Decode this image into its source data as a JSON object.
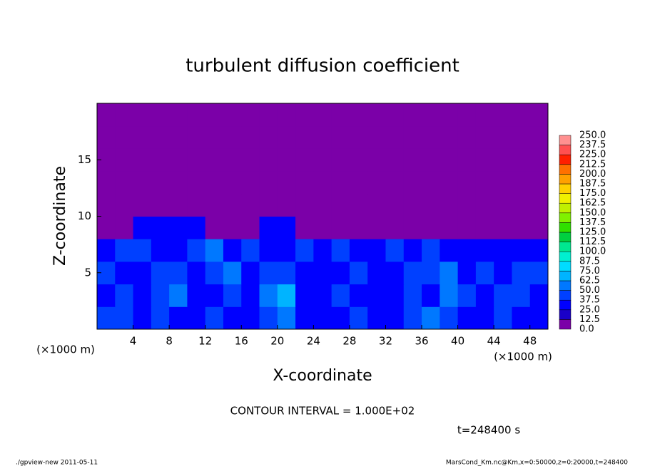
{
  "chart_data": {
    "type": "heatmap",
    "title": "turbulent diffusion coefficient",
    "xlabel": "X-coordinate",
    "ylabel": "Z-coordinate",
    "x_unit": "(×1000 m)",
    "y_unit": "(×1000 m)",
    "contour_note": "CONTOUR INTERVAL = 1.000E+02",
    "time_label": "t=248400 s",
    "footer_left": "./gpview-new  2011-05-11",
    "footer_right": "MarsCond_Km.nc@Km,x=0:50000,z=0:20000,t=248400",
    "xlim": [
      0,
      50
    ],
    "ylim": [
      0,
      20
    ],
    "xticks": [
      4,
      8,
      12,
      16,
      20,
      24,
      28,
      32,
      36,
      40,
      44,
      48
    ],
    "yticks": [
      5,
      10,
      15
    ],
    "x": [
      1,
      3,
      5,
      7,
      9,
      11,
      13,
      15,
      17,
      19,
      21,
      23,
      25,
      27,
      29,
      31,
      33,
      35,
      37,
      39,
      41,
      43,
      45,
      47,
      49
    ],
    "z": [
      1,
      3,
      5,
      7,
      9,
      11,
      13,
      15,
      17,
      19
    ],
    "values": [
      [
        40,
        45,
        35,
        40,
        30,
        35,
        40,
        30,
        35,
        40,
        55,
        35,
        30,
        35,
        40,
        30,
        35,
        45,
        50,
        40,
        35,
        35,
        40,
        35,
        30
      ],
      [
        35,
        40,
        30,
        45,
        50,
        35,
        30,
        40,
        30,
        55,
        70,
        35,
        30,
        40,
        35,
        35,
        30,
        40,
        35,
        50,
        40,
        35,
        45,
        40,
        35
      ],
      [
        40,
        30,
        35,
        40,
        45,
        30,
        40,
        60,
        35,
        45,
        40,
        35,
        30,
        35,
        40,
        30,
        35,
        40,
        45,
        60,
        35,
        40,
        35,
        40,
        45
      ],
      [
        35,
        40,
        45,
        35,
        30,
        40,
        60,
        35,
        40,
        30,
        35,
        40,
        35,
        40,
        30,
        35,
        45,
        35,
        40,
        35,
        30,
        25,
        35,
        30,
        35
      ],
      [
        0,
        0,
        25,
        25,
        25,
        25,
        0,
        0,
        0,
        25,
        25,
        0,
        0,
        0,
        0,
        0,
        0,
        0,
        0,
        0,
        0,
        0,
        0,
        0,
        0
      ],
      [
        0,
        0,
        0,
        0,
        0,
        0,
        0,
        0,
        0,
        0,
        0,
        0,
        0,
        0,
        0,
        0,
        0,
        0,
        0,
        0,
        0,
        0,
        0,
        0,
        0
      ],
      [
        0,
        0,
        0,
        0,
        0,
        0,
        0,
        0,
        0,
        0,
        0,
        0,
        0,
        0,
        0,
        0,
        0,
        0,
        0,
        0,
        0,
        0,
        0,
        0,
        0
      ],
      [
        0,
        0,
        0,
        0,
        0,
        0,
        0,
        0,
        0,
        0,
        0,
        0,
        0,
        0,
        0,
        0,
        0,
        0,
        0,
        0,
        0,
        0,
        0,
        0,
        0
      ],
      [
        0,
        0,
        0,
        0,
        0,
        0,
        0,
        0,
        0,
        0,
        0,
        0,
        0,
        0,
        0,
        0,
        0,
        0,
        0,
        0,
        0,
        0,
        0,
        0,
        0
      ],
      [
        0,
        0,
        0,
        0,
        0,
        0,
        0,
        0,
        0,
        0,
        0,
        0,
        0,
        0,
        0,
        0,
        0,
        0,
        0,
        0,
        0,
        0,
        0,
        0,
        0
      ]
    ],
    "levels": [
      {
        "value": 0,
        "label": "0.0"
      },
      {
        "value": 12.5,
        "label": "12.5"
      },
      {
        "value": 25,
        "label": "25.0"
      },
      {
        "value": 37.5,
        "label": "37.5"
      },
      {
        "value": 50,
        "label": "50.0"
      },
      {
        "value": 62.5,
        "label": "62.5"
      },
      {
        "value": 75,
        "label": "75.0"
      },
      {
        "value": 87.5,
        "label": "87.5"
      },
      {
        "value": 100,
        "label": "100.0"
      },
      {
        "value": 112.5,
        "label": "112.5"
      },
      {
        "value": 125,
        "label": "125.0"
      },
      {
        "value": 137.5,
        "label": "137.5"
      },
      {
        "value": 150,
        "label": "150.0"
      },
      {
        "value": 162.5,
        "label": "162.5"
      },
      {
        "value": 175,
        "label": "175.0"
      },
      {
        "value": 187.5,
        "label": "187.5"
      },
      {
        "value": 200,
        "label": "200.0"
      },
      {
        "value": 212.5,
        "label": "212.5"
      },
      {
        "value": 225,
        "label": "225.0"
      },
      {
        "value": 237.5,
        "label": "237.5"
      },
      {
        "value": 250,
        "label": "250.0"
      }
    ],
    "colors": [
      "#7b00a8",
      "#1a00c8",
      "#0000ff",
      "#0040ff",
      "#0078ff",
      "#00b4ff",
      "#00dcff",
      "#00f0d0",
      "#00e890",
      "#00d040",
      "#30e000",
      "#80f000",
      "#c0f000",
      "#f0f000",
      "#ffd000",
      "#ffa000",
      "#ff7000",
      "#ff2000",
      "#ff5050",
      "#ff9090"
    ]
  }
}
